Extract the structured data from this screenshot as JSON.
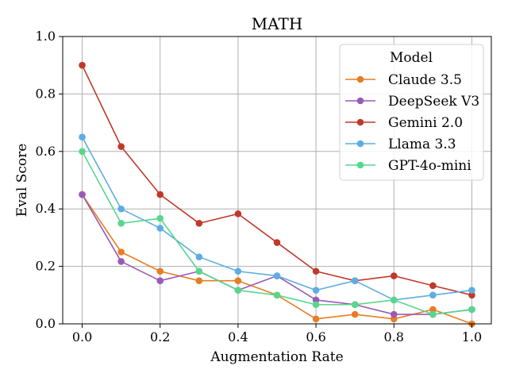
{
  "chart_data": {
    "type": "line",
    "title": "MATH",
    "xlabel": "Augmentation Rate",
    "ylabel": "Eval Score",
    "xlim": [
      -0.05,
      1.05
    ],
    "ylim": [
      0.0,
      1.0
    ],
    "x": [
      0.0,
      0.1,
      0.2,
      0.3,
      0.4,
      0.5,
      0.6,
      0.7,
      0.8,
      0.9,
      1.0
    ],
    "xticks": [
      0.0,
      0.2,
      0.4,
      0.6,
      0.8,
      1.0
    ],
    "xtick_labels": [
      "0.0",
      "0.2",
      "0.4",
      "0.6",
      "0.8",
      "1.0"
    ],
    "yticks": [
      0.0,
      0.2,
      0.4,
      0.6,
      0.8,
      1.0
    ],
    "ytick_labels": [
      "0.0",
      "0.2",
      "0.4",
      "0.6",
      "0.8",
      "1.0"
    ],
    "grid": true,
    "legend": {
      "title": "Model",
      "placement": "top-right"
    },
    "series": [
      {
        "name": "Claude 3.5",
        "color": "#e67e22",
        "values": [
          0.45,
          0.25,
          0.183,
          0.15,
          0.15,
          0.1,
          0.017,
          0.033,
          0.017,
          0.05,
          0.0
        ]
      },
      {
        "name": "DeepSeek V3",
        "color": "#9b59b6",
        "values": [
          0.45,
          0.217,
          0.15,
          0.183,
          0.117,
          0.167,
          0.083,
          0.067,
          0.033,
          0.033,
          0.05
        ]
      },
      {
        "name": "Gemini 2.0",
        "color": "#c0392b",
        "values": [
          0.9,
          0.617,
          0.45,
          0.35,
          0.383,
          0.283,
          0.183,
          0.15,
          0.167,
          0.133,
          0.1
        ]
      },
      {
        "name": "Llama 3.3",
        "color": "#5dade2",
        "values": [
          0.65,
          0.4,
          0.333,
          0.233,
          0.183,
          0.167,
          0.117,
          0.15,
          0.083,
          0.1,
          0.117
        ]
      },
      {
        "name": "GPT-4o-mini",
        "color": "#58d68d",
        "values": [
          0.6,
          0.35,
          0.367,
          0.183,
          0.117,
          0.1,
          0.067,
          0.067,
          0.083,
          0.033,
          0.05
        ]
      }
    ]
  }
}
